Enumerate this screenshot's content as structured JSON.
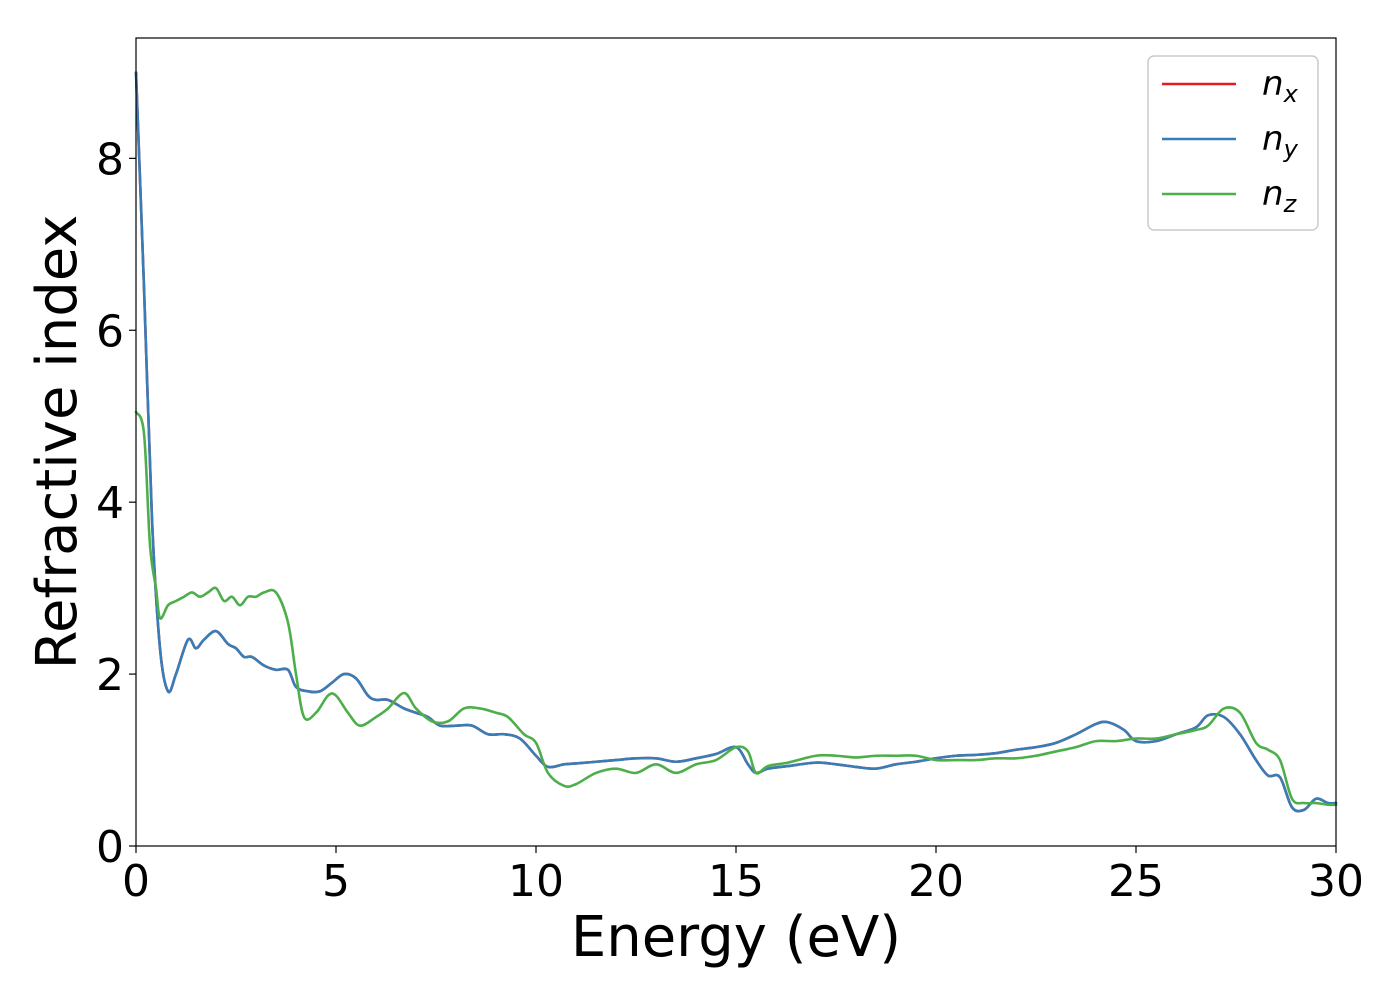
{
  "chart_data": {
    "type": "line",
    "title": "",
    "xlabel": "Energy (eV)",
    "ylabel": "Refractive index",
    "xlim": [
      0,
      30
    ],
    "ylim": [
      0,
      9.4
    ],
    "xticks": [
      0,
      5,
      10,
      15,
      20,
      25,
      30
    ],
    "yticks": [
      0,
      2,
      4,
      6,
      8
    ],
    "grid": false,
    "legend_position": "top-right",
    "series": [
      {
        "name": "n",
        "name_subscript": "x",
        "color": "#e41a1c",
        "x": [
          0,
          0.2,
          0.4,
          0.6,
          0.8,
          1.0,
          1.3,
          1.5,
          1.7,
          2.0,
          2.3,
          2.5,
          2.7,
          2.9,
          3.2,
          3.5,
          3.8,
          4.0,
          4.3,
          4.6,
          4.9,
          5.2,
          5.5,
          5.8,
          6.0,
          6.3,
          6.7,
          7.0,
          7.3,
          7.6,
          8.0,
          8.4,
          8.8,
          9.2,
          9.6,
          10.0,
          10.3,
          10.7,
          11.0,
          11.5,
          12.0,
          12.5,
          13.0,
          13.5,
          14.0,
          14.5,
          15.0,
          15.3,
          15.5,
          15.8,
          16.3,
          17.0,
          17.5,
          18.0,
          18.5,
          19.0,
          19.5,
          20.0,
          20.5,
          21.0,
          21.5,
          22.0,
          22.5,
          23.0,
          23.5,
          24.0,
          24.3,
          24.7,
          25.0,
          25.5,
          26.0,
          26.5,
          26.8,
          27.2,
          27.6,
          28.0,
          28.3,
          28.6,
          28.9,
          29.2,
          29.5,
          29.8,
          30.0
        ],
        "y": [
          9.0,
          6.5,
          3.8,
          2.3,
          1.8,
          2.0,
          2.4,
          2.3,
          2.4,
          2.5,
          2.35,
          2.3,
          2.2,
          2.2,
          2.1,
          2.05,
          2.05,
          1.85,
          1.8,
          1.8,
          1.9,
          2.0,
          1.95,
          1.75,
          1.7,
          1.7,
          1.6,
          1.55,
          1.5,
          1.4,
          1.4,
          1.4,
          1.3,
          1.3,
          1.25,
          1.05,
          0.92,
          0.95,
          0.96,
          0.98,
          1.0,
          1.02,
          1.02,
          0.98,
          1.02,
          1.07,
          1.15,
          0.95,
          0.85,
          0.9,
          0.93,
          0.97,
          0.95,
          0.92,
          0.9,
          0.95,
          0.98,
          1.02,
          1.05,
          1.06,
          1.08,
          1.12,
          1.15,
          1.2,
          1.3,
          1.42,
          1.44,
          1.35,
          1.22,
          1.22,
          1.3,
          1.38,
          1.52,
          1.5,
          1.3,
          1.0,
          0.82,
          0.8,
          0.45,
          0.42,
          0.55,
          0.5,
          0.5
        ]
      },
      {
        "name": "n",
        "name_subscript": "y",
        "color": "#377eb8",
        "x": [
          0,
          0.2,
          0.4,
          0.6,
          0.8,
          1.0,
          1.3,
          1.5,
          1.7,
          2.0,
          2.3,
          2.5,
          2.7,
          2.9,
          3.2,
          3.5,
          3.8,
          4.0,
          4.3,
          4.6,
          4.9,
          5.2,
          5.5,
          5.8,
          6.0,
          6.3,
          6.7,
          7.0,
          7.3,
          7.6,
          8.0,
          8.4,
          8.8,
          9.2,
          9.6,
          10.0,
          10.3,
          10.7,
          11.0,
          11.5,
          12.0,
          12.5,
          13.0,
          13.5,
          14.0,
          14.5,
          15.0,
          15.3,
          15.5,
          15.8,
          16.3,
          17.0,
          17.5,
          18.0,
          18.5,
          19.0,
          19.5,
          20.0,
          20.5,
          21.0,
          21.5,
          22.0,
          22.5,
          23.0,
          23.5,
          24.0,
          24.3,
          24.7,
          25.0,
          25.5,
          26.0,
          26.5,
          26.8,
          27.2,
          27.6,
          28.0,
          28.3,
          28.6,
          28.9,
          29.2,
          29.5,
          29.8,
          30.0
        ],
        "y": [
          9.0,
          6.5,
          3.8,
          2.3,
          1.8,
          2.0,
          2.4,
          2.3,
          2.4,
          2.5,
          2.35,
          2.3,
          2.2,
          2.2,
          2.1,
          2.05,
          2.05,
          1.85,
          1.8,
          1.8,
          1.9,
          2.0,
          1.95,
          1.75,
          1.7,
          1.7,
          1.6,
          1.55,
          1.5,
          1.4,
          1.4,
          1.4,
          1.3,
          1.3,
          1.25,
          1.05,
          0.92,
          0.95,
          0.96,
          0.98,
          1.0,
          1.02,
          1.02,
          0.98,
          1.02,
          1.07,
          1.15,
          0.95,
          0.85,
          0.9,
          0.93,
          0.97,
          0.95,
          0.92,
          0.9,
          0.95,
          0.98,
          1.02,
          1.05,
          1.06,
          1.08,
          1.12,
          1.15,
          1.2,
          1.3,
          1.42,
          1.44,
          1.35,
          1.22,
          1.22,
          1.3,
          1.38,
          1.52,
          1.5,
          1.3,
          1.0,
          0.82,
          0.8,
          0.45,
          0.42,
          0.55,
          0.5,
          0.5
        ]
      },
      {
        "name": "n",
        "name_subscript": "z",
        "color": "#4daf4a",
        "x": [
          0,
          0.2,
          0.35,
          0.5,
          0.6,
          0.8,
          1.0,
          1.2,
          1.4,
          1.6,
          1.8,
          2.0,
          2.2,
          2.4,
          2.6,
          2.8,
          3.0,
          3.2,
          3.5,
          3.8,
          4.0,
          4.2,
          4.5,
          4.8,
          5.0,
          5.3,
          5.6,
          6.0,
          6.3,
          6.7,
          7.0,
          7.4,
          7.8,
          8.2,
          8.6,
          9.0,
          9.3,
          9.7,
          10.0,
          10.3,
          10.7,
          11.0,
          11.5,
          12.0,
          12.5,
          13.0,
          13.5,
          14.0,
          14.5,
          15.0,
          15.3,
          15.5,
          15.8,
          16.3,
          17.0,
          17.5,
          18.0,
          18.5,
          19.0,
          19.5,
          20.0,
          20.5,
          21.0,
          21.5,
          22.0,
          22.5,
          23.0,
          23.5,
          24.0,
          24.5,
          25.0,
          25.5,
          26.0,
          26.5,
          26.8,
          27.2,
          27.6,
          28.0,
          28.3,
          28.6,
          28.9,
          29.2,
          29.5,
          29.8,
          30.0
        ],
        "y": [
          5.05,
          4.8,
          3.5,
          3.0,
          2.65,
          2.8,
          2.85,
          2.9,
          2.95,
          2.9,
          2.95,
          3.0,
          2.85,
          2.9,
          2.8,
          2.9,
          2.9,
          2.95,
          2.95,
          2.6,
          2.0,
          1.5,
          1.55,
          1.75,
          1.75,
          1.55,
          1.4,
          1.5,
          1.6,
          1.78,
          1.6,
          1.45,
          1.45,
          1.6,
          1.6,
          1.55,
          1.5,
          1.3,
          1.2,
          0.85,
          0.7,
          0.72,
          0.85,
          0.9,
          0.85,
          0.95,
          0.85,
          0.95,
          1.0,
          1.15,
          1.1,
          0.85,
          0.93,
          0.97,
          1.05,
          1.05,
          1.03,
          1.05,
          1.05,
          1.05,
          1.0,
          1.0,
          1.0,
          1.02,
          1.02,
          1.05,
          1.1,
          1.15,
          1.22,
          1.22,
          1.25,
          1.25,
          1.3,
          1.35,
          1.4,
          1.6,
          1.55,
          1.2,
          1.12,
          1.0,
          0.55,
          0.5,
          0.5,
          0.48,
          0.48
        ]
      }
    ]
  }
}
